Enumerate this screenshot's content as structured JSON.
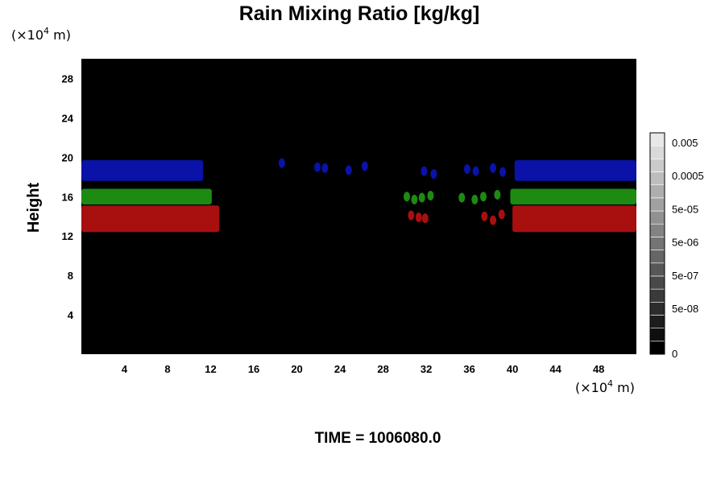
{
  "chart_data": {
    "type": "heatmap",
    "title": "Rain Mixing Ratio [kg/kg]",
    "ylabel": "Height",
    "xlabel": "",
    "x_unit": {
      "prefix": "(×10",
      "exp": "4",
      "suffix": " m)"
    },
    "y_unit": {
      "prefix": "(×10",
      "exp": "4",
      "suffix": " m)"
    },
    "xlim": [
      0,
      51.5
    ],
    "ylim": [
      0,
      30
    ],
    "xticks": [
      4,
      8,
      12,
      16,
      20,
      24,
      28,
      32,
      36,
      40,
      44,
      48
    ],
    "yticks": [
      4,
      8,
      12,
      16,
      20,
      24,
      28
    ],
    "background_color": "#000000",
    "layers": [
      {
        "color": "#0a12a8",
        "regions": [
          [
            0,
            11.3,
            17.6,
            19.7
          ],
          [
            40.2,
            51.5,
            17.6,
            19.7
          ]
        ]
      },
      {
        "color": "#1d8a12",
        "regions": [
          [
            0,
            12.1,
            15.2,
            16.8
          ],
          [
            39.8,
            51.5,
            15.2,
            16.8
          ]
        ]
      },
      {
        "color": "#a80f0f",
        "regions": [
          [
            0,
            12.8,
            12.4,
            15.1
          ],
          [
            40.0,
            51.5,
            12.4,
            15.1
          ]
        ]
      }
    ],
    "blobs": [
      {
        "color": "#0a12a8",
        "points": [
          [
            18.6,
            19.4
          ],
          [
            21.9,
            19.0
          ],
          [
            22.6,
            18.9
          ],
          [
            24.8,
            18.7
          ],
          [
            26.3,
            19.1
          ],
          [
            31.8,
            18.6
          ],
          [
            32.7,
            18.3
          ],
          [
            35.8,
            18.8
          ],
          [
            36.6,
            18.6
          ],
          [
            38.2,
            18.9
          ],
          [
            39.1,
            18.5
          ]
        ]
      },
      {
        "color": "#1d8a12",
        "points": [
          [
            30.2,
            16.0
          ],
          [
            30.9,
            15.7
          ],
          [
            31.6,
            15.9
          ],
          [
            32.4,
            16.1
          ],
          [
            35.3,
            15.9
          ],
          [
            36.5,
            15.7
          ],
          [
            37.3,
            16.0
          ],
          [
            38.6,
            16.2
          ]
        ]
      },
      {
        "color": "#a80f0f",
        "points": [
          [
            30.6,
            14.1
          ],
          [
            31.3,
            13.9
          ],
          [
            31.9,
            13.8
          ],
          [
            37.4,
            14.0
          ],
          [
            38.2,
            13.6
          ],
          [
            39.0,
            14.2
          ]
        ]
      }
    ],
    "colorbar": {
      "labels": [
        "0.005",
        "0.0005",
        "5e-05",
        "5e-06",
        "5e-07",
        "5e-08",
        "0"
      ],
      "levels": 17
    }
  },
  "footer": {
    "time_label": "TIME = 1006080.0"
  }
}
